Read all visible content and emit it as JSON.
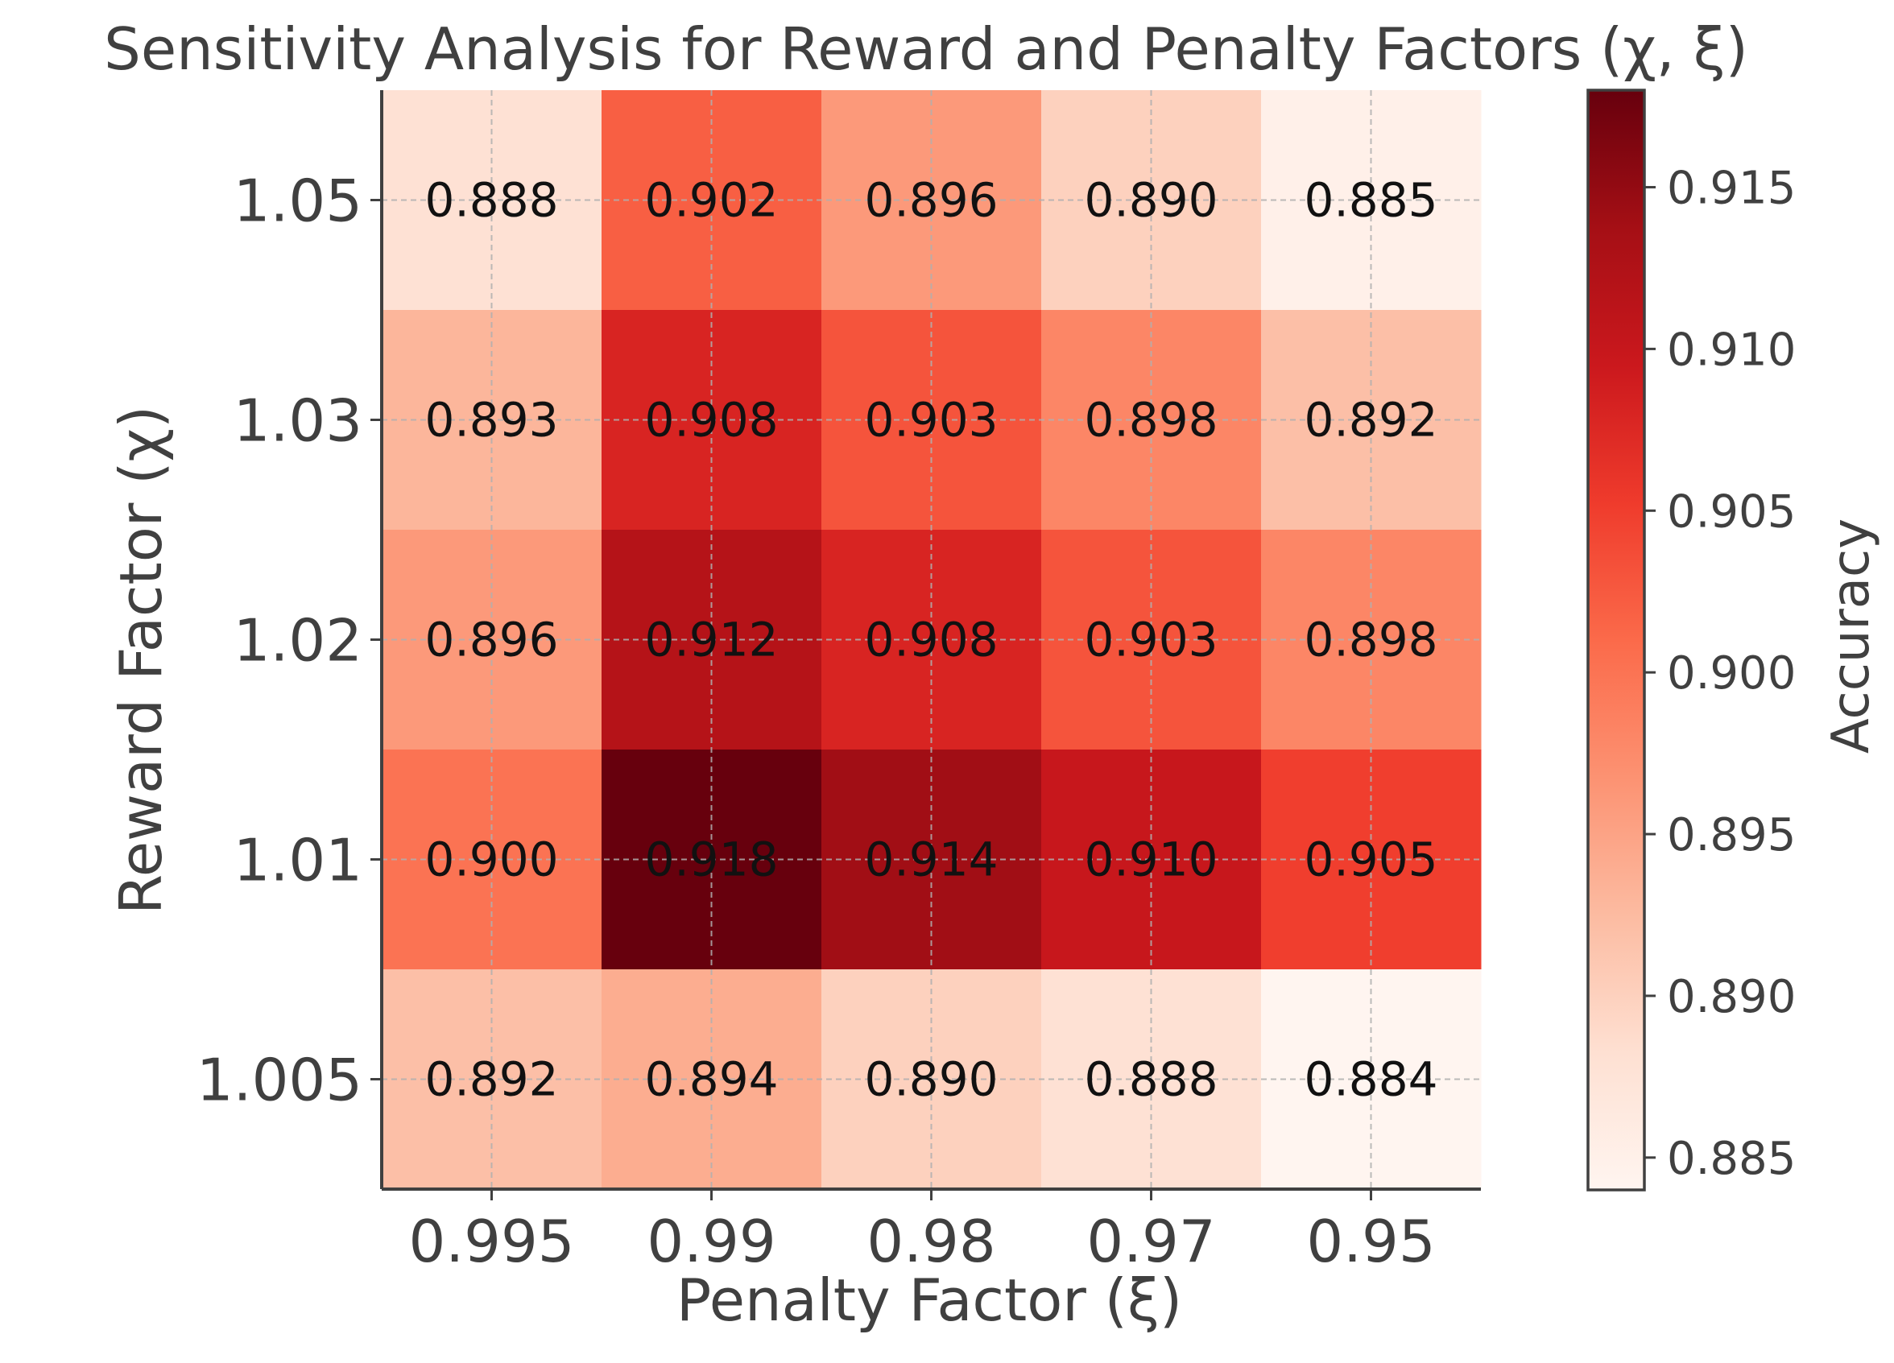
{
  "chart_data": {
    "type": "heatmap",
    "title": "Sensitivity Analysis for Reward and Penalty Factors (χ, ξ)",
    "xlabel": "Penalty Factor (ξ)",
    "ylabel": "Reward Factor (χ)",
    "x_categories": [
      "0.995",
      "0.99",
      "0.98",
      "0.97",
      "0.95"
    ],
    "y_categories": [
      "1.05",
      "1.03",
      "1.02",
      "1.01",
      "1.005"
    ],
    "values": [
      [
        0.888,
        0.902,
        0.896,
        0.89,
        0.885
      ],
      [
        0.893,
        0.908,
        0.903,
        0.898,
        0.892
      ],
      [
        0.896,
        0.912,
        0.908,
        0.903,
        0.898
      ],
      [
        0.9,
        0.918,
        0.914,
        0.91,
        0.905
      ],
      [
        0.892,
        0.894,
        0.89,
        0.888,
        0.884
      ]
    ],
    "cell_labels": [
      [
        "0.888",
        "0.902",
        "0.896",
        "0.890",
        "0.885"
      ],
      [
        "0.893",
        "0.908",
        "0.903",
        "0.898",
        "0.892"
      ],
      [
        "0.896",
        "0.912",
        "0.908",
        "0.903",
        "0.898"
      ],
      [
        "0.900",
        "0.918",
        "0.914",
        "0.910",
        "0.905"
      ],
      [
        "0.892",
        "0.894",
        "0.890",
        "0.888",
        "0.884"
      ]
    ],
    "colormap": "Reds",
    "colorbar": {
      "label": "Accuracy",
      "range": [
        0.884,
        0.918
      ],
      "ticks": [
        0.885,
        0.89,
        0.895,
        0.9,
        0.905,
        0.91,
        0.915
      ],
      "tick_labels": [
        "0.885",
        "0.890",
        "0.895",
        "0.900",
        "0.905",
        "0.910",
        "0.915"
      ]
    },
    "grid": true
  },
  "colors": {
    "text": "#404040",
    "annotation": "#111111",
    "axis": "#404040",
    "grid": "#b0b0b0",
    "colormap_stops": [
      "#fff5f0",
      "#fee0d2",
      "#fcbba1",
      "#fc9272",
      "#fb6a4a",
      "#ef3b2c",
      "#cb181d",
      "#a50f15",
      "#67000d"
    ]
  }
}
